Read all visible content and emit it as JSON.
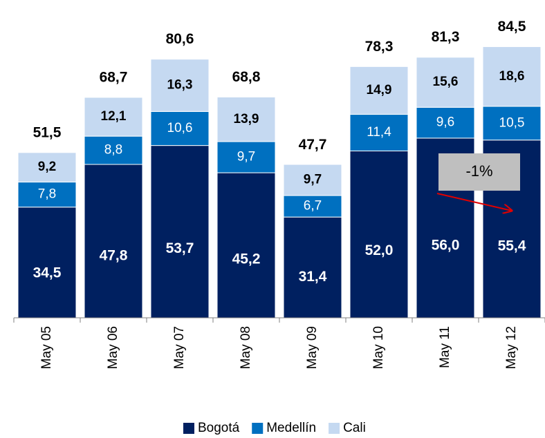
{
  "chart_data": {
    "type": "stacked_bar",
    "categories": [
      "May 05",
      "May 06",
      "May 07",
      "May 08",
      "May 09",
      "May 10",
      "May 11",
      "May 12"
    ],
    "series": [
      {
        "name": "Bogotá",
        "color": "#002060",
        "values": [
          34.5,
          47.8,
          53.7,
          45.2,
          31.4,
          52.0,
          56.0,
          55.4
        ],
        "value_labels": [
          "34,5",
          "47,8",
          "53,7",
          "45,2",
          "31,4",
          "52,0",
          "56,0",
          "55,4"
        ]
      },
      {
        "name": "Medellín",
        "color": "#0070c0",
        "values": [
          7.8,
          8.8,
          10.6,
          9.7,
          6.7,
          11.4,
          9.6,
          10.5
        ],
        "value_labels": [
          "7,8",
          "8,8",
          "10,6",
          "9,7",
          "6,7",
          "11,4",
          "9,6",
          "10,5"
        ]
      },
      {
        "name": "Cali",
        "color": "#c5d9f1",
        "values": [
          9.2,
          12.1,
          16.3,
          13.9,
          9.7,
          14.9,
          15.6,
          18.6
        ],
        "value_labels": [
          "9,2",
          "12,1",
          "16,3",
          "13,9",
          "9,7",
          "14,9",
          "15,6",
          "18,6"
        ]
      }
    ],
    "totals": [
      51.5,
      68.7,
      80.6,
      68.8,
      47.7,
      78.3,
      81.3,
      84.5
    ],
    "total_labels": [
      "51,5",
      "68,7",
      "80,6",
      "68,8",
      "47,7",
      "78,3",
      "81,3",
      "84,5"
    ],
    "annotation": "-1%",
    "ylim": [
      0,
      90
    ],
    "legend": "bottom"
  }
}
